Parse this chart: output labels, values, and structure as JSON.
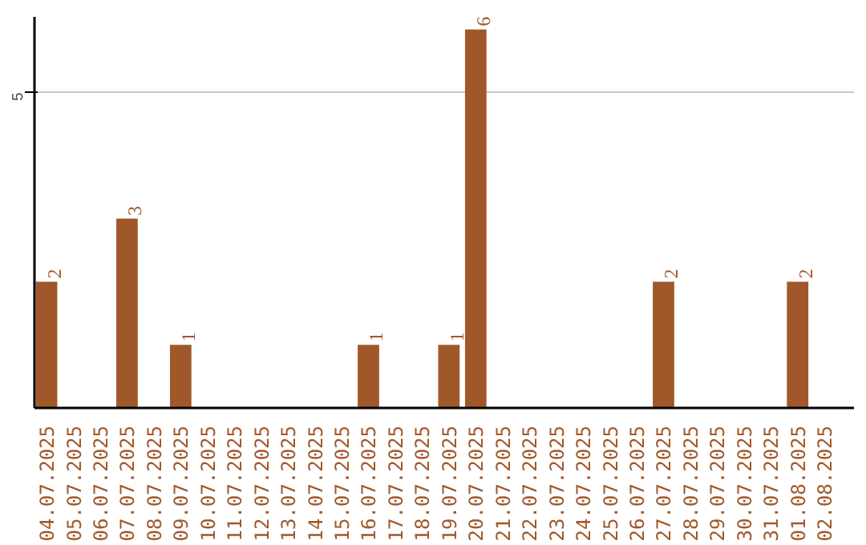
{
  "chart_data": {
    "type": "bar",
    "categories": [
      "04.07.2025",
      "05.07.2025",
      "06.07.2025",
      "07.07.2025",
      "08.07.2025",
      "09.07.2025",
      "10.07.2025",
      "11.07.2025",
      "12.07.2025",
      "13.07.2025",
      "14.07.2025",
      "15.07.2025",
      "16.07.2025",
      "17.07.2025",
      "18.07.2025",
      "19.07.2025",
      "20.07.2025",
      "21.07.2025",
      "22.07.2025",
      "23.07.2025",
      "24.07.2025",
      "25.07.2025",
      "26.07.2025",
      "27.07.2025",
      "28.07.2025",
      "29.07.2025",
      "30.07.2025",
      "31.07.2025",
      "01.08.2025",
      "02.08.2025"
    ],
    "values": [
      2,
      0,
      0,
      3,
      0,
      1,
      0,
      0,
      0,
      0,
      0,
      0,
      1,
      0,
      0,
      1,
      6,
      0,
      0,
      0,
      0,
      0,
      0,
      2,
      0,
      0,
      0,
      0,
      2,
      0
    ],
    "value_labels": [
      "2",
      null,
      null,
      "3",
      null,
      "1",
      null,
      null,
      null,
      null,
      null,
      null,
      "1",
      null,
      null,
      "1",
      "6",
      null,
      null,
      null,
      null,
      null,
      null,
      "2",
      null,
      null,
      null,
      null,
      "2",
      null
    ],
    "color": "#a0582a",
    "ylim": [
      0,
      6.2
    ],
    "yticks": [
      5
    ],
    "grid": "y"
  }
}
